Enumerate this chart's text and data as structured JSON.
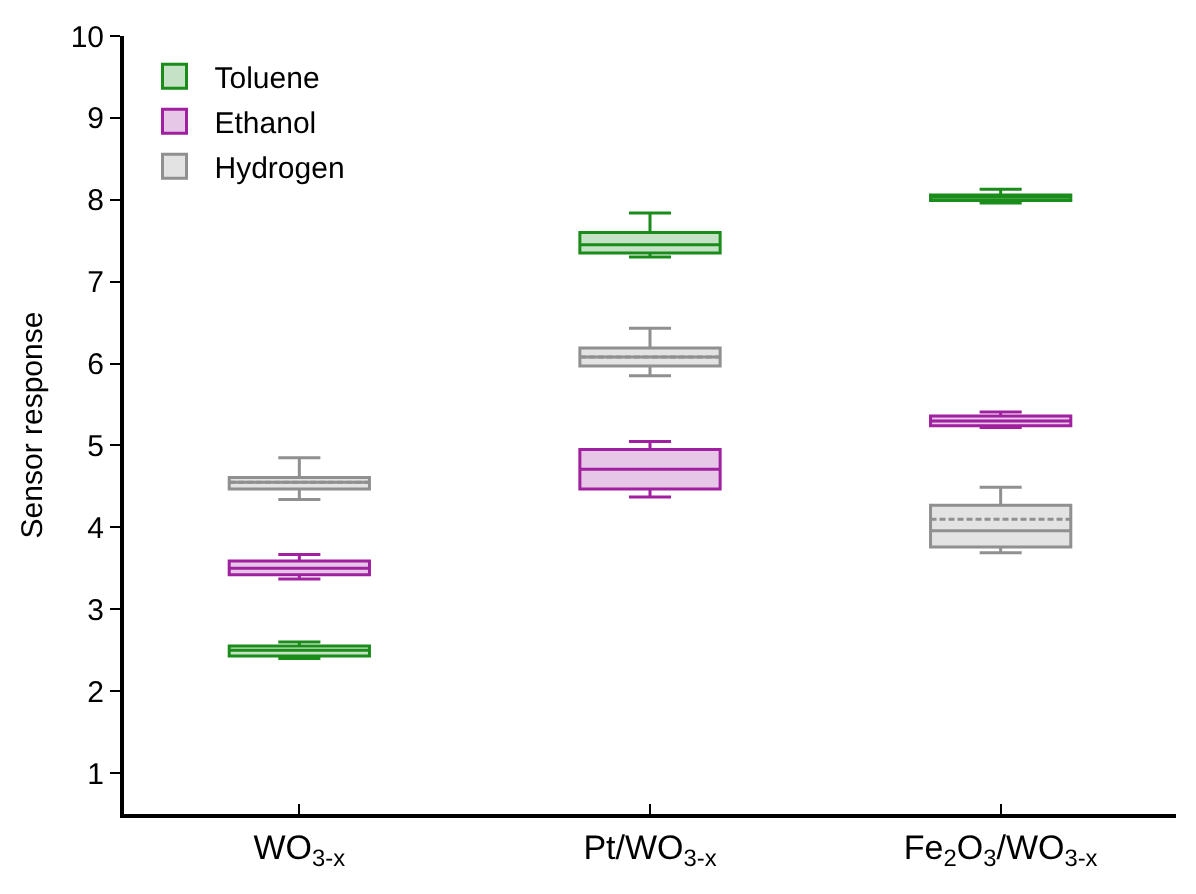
{
  "chart_data": {
    "type": "box",
    "ylabel": "Sensor response",
    "categories": [
      "WO$_{3-x}$",
      "Pt/WO$_{3-x}$",
      "Fe$_{2}$O$_{3}$/WO$_{3-x}$"
    ],
    "ylim": [
      0.5,
      10
    ],
    "yticks": [
      1,
      2,
      3,
      4,
      5,
      6,
      7,
      8,
      9,
      10
    ],
    "grid": false,
    "legend": "top left",
    "series": [
      {
        "name": "Toluene",
        "color": "#1a8c1a",
        "boxes": [
          {
            "low": 2.4,
            "q1": 2.43,
            "median": 2.5,
            "q3": 2.55,
            "high": 2.6
          },
          {
            "low": 7.3,
            "q1": 7.35,
            "median": 7.45,
            "q3": 7.6,
            "high": 7.84
          },
          {
            "low": 7.96,
            "q1": 7.99,
            "median": 8.03,
            "q3": 8.06,
            "high": 8.13
          }
        ]
      },
      {
        "name": "Ethanol",
        "color": "#a020a0",
        "boxes": [
          {
            "low": 3.37,
            "q1": 3.42,
            "median": 3.5,
            "q3": 3.59,
            "high": 3.67
          },
          {
            "low": 4.37,
            "q1": 4.47,
            "median": 4.71,
            "q3": 4.95,
            "high": 5.05
          },
          {
            "low": 5.22,
            "q1": 5.24,
            "median": 5.3,
            "q3": 5.36,
            "high": 5.41
          }
        ]
      },
      {
        "name": "Hydrogen",
        "color": "#909090",
        "boxes": [
          {
            "low": 4.34,
            "q1": 4.47,
            "median": 4.55,
            "q3": 4.61,
            "high": 4.85
          },
          {
            "low": 5.85,
            "q1": 5.97,
            "median": 6.08,
            "q3": 6.19,
            "high": 6.43
          },
          {
            "low": 3.69,
            "q1": 3.76,
            "median": 3.96,
            "q3": 4.27,
            "high": 4.49,
            "mean": 4.1
          }
        ]
      }
    ]
  }
}
